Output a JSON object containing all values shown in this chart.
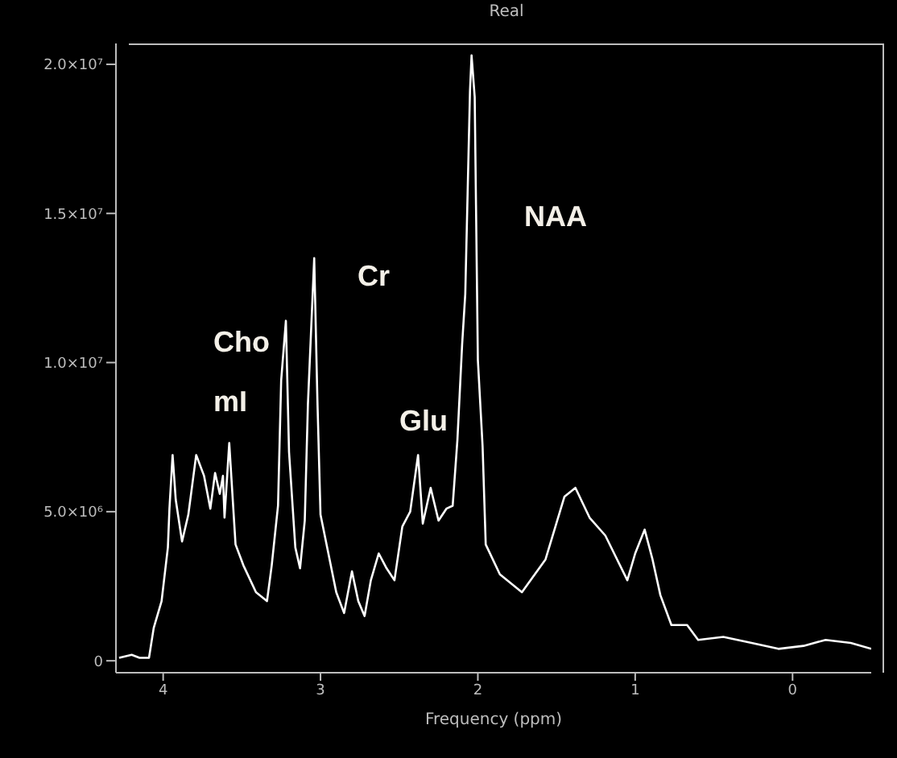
{
  "chart_data": {
    "type": "line",
    "title": "Real",
    "xlabel": "Frequency (ppm)",
    "xlim": [
      4.3,
      -0.5
    ],
    "xticks": [
      4,
      3,
      2,
      1,
      0
    ],
    "ylim": [
      -400000,
      20700000
    ],
    "yticks": [
      {
        "value": 0,
        "label": "0"
      },
      {
        "value": 5000000,
        "label": "5.0×10⁶"
      },
      {
        "value": 10000000,
        "label": "1.0×10⁷"
      },
      {
        "value": 15000000,
        "label": "1.5×10⁷"
      },
      {
        "value": 20000000,
        "label": "2.0×10⁷"
      }
    ],
    "line_style": "solid",
    "annotations": [
      "Cho",
      "mI",
      "Cr",
      "Glu",
      "NAA"
    ],
    "series": [
      {
        "color": "#ffffff",
        "x": [
          4.28,
          4.2,
          4.15,
          4.09,
          4.06,
          4.01,
          3.97,
          3.96,
          3.94,
          3.92,
          3.88,
          3.84,
          3.79,
          3.74,
          3.7,
          3.67,
          3.64,
          3.62,
          3.61,
          3.58,
          3.54,
          3.49,
          3.41,
          3.34,
          3.31,
          3.27,
          3.25,
          3.22,
          3.2,
          3.16,
          3.13,
          3.1,
          3.08,
          3.04,
          3.02,
          3.0,
          2.95,
          2.9,
          2.85,
          2.8,
          2.76,
          2.72,
          2.68,
          2.63,
          2.58,
          2.53,
          2.48,
          2.43,
          2.38,
          2.35,
          2.3,
          2.25,
          2.2,
          2.16,
          2.13,
          2.1,
          2.08,
          2.05,
          2.04,
          2.02,
          2.0,
          1.97,
          1.95,
          1.86,
          1.72,
          1.57,
          1.45,
          1.38,
          1.29,
          1.19,
          1.05,
          1.0,
          0.94,
          0.89,
          0.84,
          0.77,
          0.67,
          0.6,
          0.44,
          0.26,
          0.09,
          -0.07,
          -0.21,
          -0.37,
          -0.5
        ],
        "values": [
          100000,
          200000,
          100000,
          100000,
          1100000,
          2000000,
          3800000,
          5100000,
          6900000,
          5400000,
          4000000,
          4900000,
          6900000,
          6200000,
          5100000,
          6300000,
          5600000,
          6200000,
          4800000,
          7300000,
          3900000,
          3200000,
          2300000,
          2000000,
          3200000,
          5200000,
          9400000,
          11400000,
          7000000,
          3800000,
          3100000,
          4700000,
          8600000,
          13500000,
          8800000,
          4900000,
          3600000,
          2300000,
          1600000,
          3000000,
          2000000,
          1500000,
          2700000,
          3600000,
          3100000,
          2700000,
          4500000,
          5000000,
          6900000,
          4600000,
          5800000,
          4700000,
          5100000,
          5200000,
          7400000,
          10600000,
          12300000,
          19100000,
          20300000,
          18900000,
          10100000,
          7200000,
          3900000,
          2900000,
          2300000,
          3400000,
          5500000,
          5800000,
          4800000,
          4200000,
          2700000,
          3600000,
          4400000,
          3400000,
          2200000,
          1200000,
          1200000,
          700000,
          800000,
          600000,
          400000,
          500000,
          700000,
          600000,
          400000
        ]
      }
    ]
  }
}
